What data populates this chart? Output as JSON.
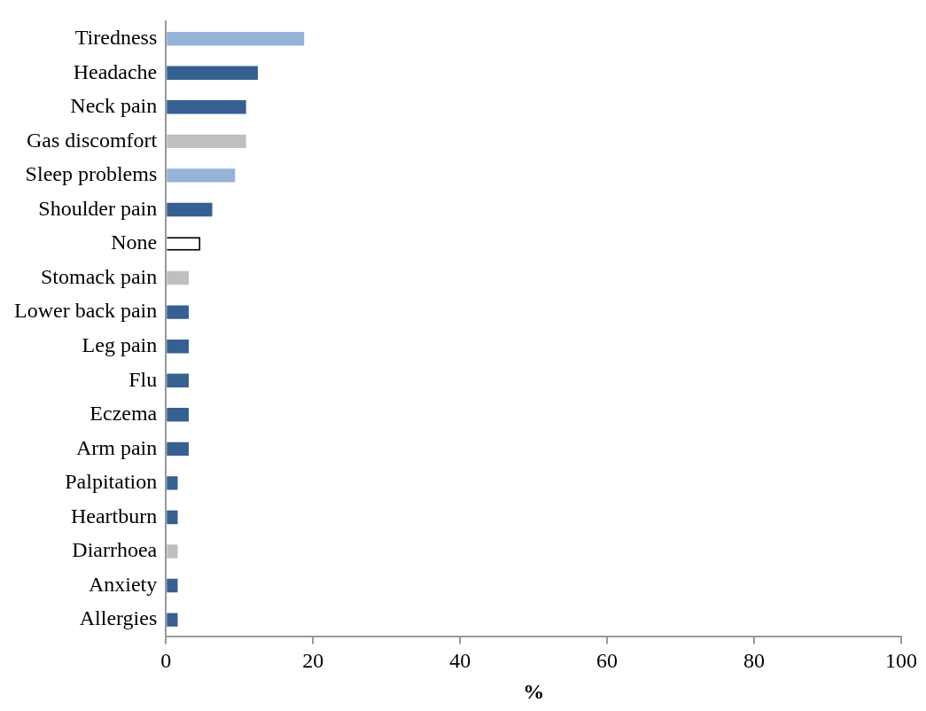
{
  "chart_data": {
    "type": "bar",
    "orientation": "horizontal",
    "xlabel": "%",
    "categories": [
      "Tiredness",
      "Headache",
      "Neck pain",
      "Gas discomfort",
      "Sleep problems",
      "Shoulder pain",
      "None",
      "Stomack pain",
      "Lower back pain",
      "Leg pain",
      "Flu",
      "Eczema",
      "Arm pain",
      "Palpitation",
      "Heartburn",
      "Diarrhoea",
      "Anxiety",
      "Allergies"
    ],
    "values": [
      18.8,
      12.5,
      10.9,
      10.9,
      9.4,
      6.3,
      4.7,
      3.1,
      3.1,
      3.1,
      3.1,
      3.1,
      3.1,
      1.6,
      1.6,
      1.6,
      1.6,
      1.6
    ],
    "colors": [
      "#95b3d7",
      "#366092",
      "#366092",
      "#bfbfbf",
      "#95b3d7",
      "#366092",
      "#ffffff",
      "#bfbfbf",
      "#366092",
      "#366092",
      "#366092",
      "#366092",
      "#366092",
      "#366092",
      "#366092",
      "#bfbfbf",
      "#366092",
      "#366092"
    ],
    "xlim": [
      0,
      100
    ],
    "xticks": [
      0,
      20,
      40,
      60,
      80,
      100
    ],
    "grid": false,
    "legend": false
  }
}
